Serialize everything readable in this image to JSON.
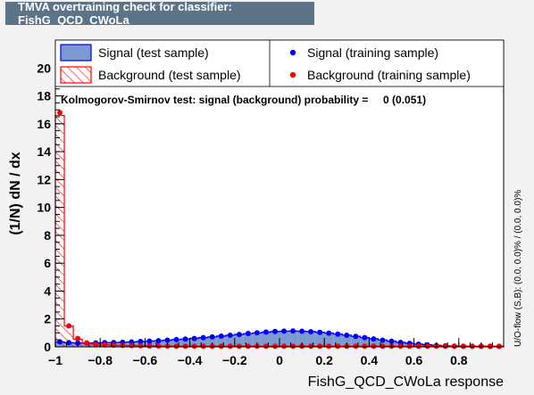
{
  "window": {
    "title": "TMVA overtraining check for classifier: FishG_QCD_CWoLa"
  },
  "chart_data": {
    "type": "histogram",
    "xlabel": "FishG_QCD_CWoLa response",
    "ylabel": "(1/N) dN / dx",
    "side_label": "U/O-flow (S,B): (0.0, 0.0)% / (0.0, 0.0)%",
    "xlim": [
      -1.0,
      1.0
    ],
    "ylim": [
      0,
      22
    ],
    "x_ticks": [
      -1,
      -0.8,
      -0.6,
      -0.4,
      -0.2,
      0,
      0.2,
      0.4,
      0.6,
      0.8
    ],
    "x_tick_labels": [
      "−1",
      "−0.8",
      "−0.6",
      "−0.4",
      "−0.2",
      "0",
      "0.2",
      "0.4",
      "0.6",
      "0.8"
    ],
    "y_ticks": [
      0,
      2,
      4,
      6,
      8,
      10,
      12,
      14,
      16,
      18,
      20
    ],
    "y_tick_labels": [
      "0",
      "2",
      "4",
      "6",
      "8",
      "10",
      "12",
      "14",
      "16",
      "18",
      "20"
    ],
    "ks_text": "Kolmogorov-Smirnov test: signal (background) probability =     0 (0.051)",
    "legend": {
      "signal_test": "Signal (test sample)",
      "background_test": "Background (test sample)",
      "signal_train": "Signal (training sample)",
      "background_train": "Background (training sample)"
    },
    "colors": {
      "signal_fill": "#7d99d1",
      "signal_line": "#0000ee",
      "background_hatch": "#ff0000",
      "signal_marker": "#0000ff",
      "background_marker": "#ff0000"
    },
    "bin_edges_start": -1.0,
    "bin_width": 0.04,
    "series": [
      {
        "name": "Signal (test sample)",
        "values": [
          0.35,
          0.3,
          0.28,
          0.28,
          0.29,
          0.3,
          0.31,
          0.33,
          0.35,
          0.38,
          0.41,
          0.44,
          0.48,
          0.52,
          0.56,
          0.61,
          0.66,
          0.71,
          0.77,
          0.83,
          0.89,
          0.95,
          1.0,
          1.05,
          1.1,
          1.12,
          1.13,
          1.12,
          1.1,
          1.05,
          0.99,
          0.92,
          0.84,
          0.76,
          0.67,
          0.58,
          0.49,
          0.41,
          0.33,
          0.26,
          0.2,
          0.15,
          0.11,
          0.08,
          0.06,
          0.05,
          0.04,
          0.04,
          0.04,
          0.03
        ]
      },
      {
        "name": "Background (test sample)",
        "values": [
          16.6,
          1.5,
          0.55,
          0.25,
          0.18,
          0.15,
          0.12,
          0.1,
          0.09,
          0.08,
          0.07,
          0.06,
          0.06,
          0.05,
          0.05,
          0.05,
          0.05,
          0.05,
          0.05,
          0.05,
          0.05,
          0.05,
          0.05,
          0.05,
          0.05,
          0.05,
          0.05,
          0.05,
          0.05,
          0.05,
          0.05,
          0.05,
          0.05,
          0.05,
          0.05,
          0.05,
          0.05,
          0.05,
          0.05,
          0.05,
          0.05,
          0.05,
          0.05,
          0.05,
          0.05,
          0.05,
          0.05,
          0.05,
          0.05,
          0.05
        ]
      },
      {
        "name": "Signal (training sample)",
        "values": [
          0.36,
          0.3,
          0.27,
          0.27,
          0.28,
          0.3,
          0.31,
          0.33,
          0.35,
          0.38,
          0.41,
          0.44,
          0.48,
          0.52,
          0.56,
          0.6,
          0.66,
          0.71,
          0.77,
          0.83,
          0.89,
          0.96,
          1.01,
          1.06,
          1.1,
          1.13,
          1.14,
          1.12,
          1.09,
          1.04,
          0.98,
          0.91,
          0.83,
          0.75,
          0.66,
          0.57,
          0.48,
          0.4,
          0.32,
          0.25,
          0.19,
          0.14,
          0.1,
          0.07,
          0.05,
          0.04,
          0.04,
          0.04,
          0.03,
          0.03
        ]
      },
      {
        "name": "Background (training sample)",
        "values": [
          16.8,
          1.5,
          0.6,
          0.28,
          0.18,
          0.14,
          0.12,
          0.1,
          0.09,
          0.08,
          0.07,
          0.06,
          0.06,
          0.05,
          0.05,
          0.05,
          0.05,
          0.05,
          0.05,
          0.05,
          0.05,
          0.05,
          0.05,
          0.05,
          0.05,
          0.05,
          0.05,
          0.05,
          0.05,
          0.05,
          0.05,
          0.05,
          0.05,
          0.05,
          0.05,
          0.05,
          0.05,
          0.05,
          0.05,
          0.05,
          0.05,
          0.05,
          0.05,
          0.05,
          0.05,
          0.05,
          0.05,
          0.05,
          0.05,
          0.05
        ]
      }
    ]
  }
}
